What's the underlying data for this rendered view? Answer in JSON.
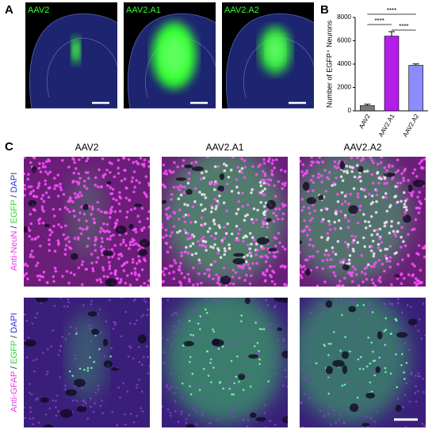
{
  "panel_labels": [
    "A",
    "B",
    "C"
  ],
  "panel_a": {
    "images": [
      "AAV2",
      "AAV2.A1",
      "AAV2.A2"
    ]
  },
  "chart_data": {
    "type": "bar",
    "y_label": "Number of EGFP⁺ Neurons",
    "categories": [
      "AAV2",
      "AAV2.A1",
      "AAV2.A2"
    ],
    "values": [
      450,
      6400,
      3900
    ],
    "errors": [
      120,
      380,
      120
    ],
    "colors": [
      "#7a7a7a",
      "#b21de8",
      "#8c8cff"
    ],
    "ylim": [
      0,
      8000
    ],
    "yticks": [
      0,
      2000,
      4000,
      6000,
      8000
    ],
    "significance": [
      {
        "label": "****",
        "from": 0,
        "to": 2
      },
      {
        "label": "****",
        "from": 0,
        "to": 1
      },
      {
        "label": "****",
        "from": 1,
        "to": 2
      }
    ]
  },
  "panel_c": {
    "columns": [
      "AAV2",
      "AAV2.A1",
      "AAV2.A2"
    ],
    "rows": [
      [
        {
          "text": "Anti-NeuN",
          "color": "#e23de2"
        },
        {
          "text": " / ",
          "color": "#222222"
        },
        {
          "text": "EGFP",
          "color": "#2fd52f"
        },
        {
          "text": " / ",
          "color": "#222222"
        },
        {
          "text": "DAPI",
          "color": "#3030d0"
        }
      ],
      [
        {
          "text": "Anti-GFAP",
          "color": "#e23de2"
        },
        {
          "text": " / ",
          "color": "#222222"
        },
        {
          "text": "EGFP",
          "color": "#2fd52f"
        },
        {
          "text": " / ",
          "color": "#222222"
        },
        {
          "text": "DAPI",
          "color": "#3030d0"
        }
      ]
    ]
  }
}
